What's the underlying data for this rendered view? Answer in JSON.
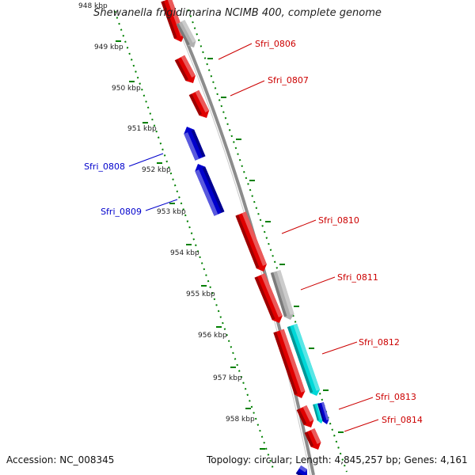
{
  "header": {
    "title": "Shewanella frigidimarina NCIMB 400, complete genome"
  },
  "footer": {
    "accession": "Accession: NC_008345",
    "stats": "Topology: circular; Length: 4,845,257 bp; Genes: 4,161"
  },
  "ruler": {
    "labels": [
      "948 kbp",
      "949 kbp",
      "950 kbp",
      "951 kbp",
      "952 kbp",
      "953 kbp",
      "954 kbp",
      "955 kbp",
      "956 kbp",
      "957 kbp",
      "958 kbp"
    ]
  },
  "genes": [
    {
      "label": "Sfri_0806",
      "strand": "forward",
      "color": "#e00000"
    },
    {
      "label": "Sfri_0807",
      "strand": "forward",
      "color": "#e00000"
    },
    {
      "label": "Sfri_0808",
      "strand": "reverse",
      "color": "#0000cc"
    },
    {
      "label": "Sfri_0809",
      "strand": "reverse",
      "color": "#0000cc"
    },
    {
      "label": "Sfri_0810",
      "strand": "forward",
      "color": "#e00000"
    },
    {
      "label": "Sfri_0811",
      "strand": "forward",
      "color": "#e00000"
    },
    {
      "label": "Sfri_0812",
      "strand": "forward",
      "color": "#e00000"
    },
    {
      "label": "Sfri_0813",
      "strand": "forward",
      "color": "#e00000"
    },
    {
      "label": "Sfri_0814",
      "strand": "forward",
      "color": "#e00000"
    }
  ],
  "features": [
    {
      "name": "grey-feature",
      "color": "#b0b0b0"
    },
    {
      "name": "cyan-feature",
      "color": "#00d8d8"
    },
    {
      "name": "blue-feature",
      "color": "#0000cc"
    }
  ],
  "colors": {
    "backbone": "#8c8c8c",
    "ruler": "#008000",
    "forward_label": "#cc0000",
    "reverse_label": "#0000cc",
    "red_gene": "#e00000",
    "blue_gene": "#0000cc",
    "grey_feature": "#b0b0b0",
    "cyan_feature": "#00d8d8"
  }
}
